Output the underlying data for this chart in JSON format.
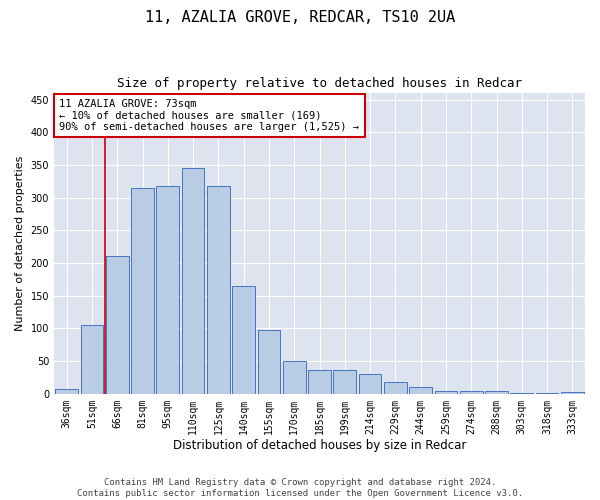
{
  "title": "11, AZALIA GROVE, REDCAR, TS10 2UA",
  "subtitle": "Size of property relative to detached houses in Redcar",
  "xlabel": "Distribution of detached houses by size in Redcar",
  "ylabel": "Number of detached properties",
  "categories": [
    "36sqm",
    "51sqm",
    "66sqm",
    "81sqm",
    "95sqm",
    "110sqm",
    "125sqm",
    "140sqm",
    "155sqm",
    "170sqm",
    "185sqm",
    "199sqm",
    "214sqm",
    "229sqm",
    "244sqm",
    "259sqm",
    "274sqm",
    "288sqm",
    "303sqm",
    "318sqm",
    "333sqm"
  ],
  "values": [
    7,
    105,
    211,
    315,
    318,
    345,
    318,
    165,
    97,
    50,
    36,
    36,
    30,
    18,
    10,
    5,
    5,
    5,
    2,
    2,
    3
  ],
  "bar_color": "#b8cce4",
  "bar_edge_color": "#4472c4",
  "background_color": "#dde4f0",
  "grid_color": "#ffffff",
  "annotation_text": "11 AZALIA GROVE: 73sqm\n← 10% of detached houses are smaller (169)\n90% of semi-detached houses are larger (1,525) →",
  "annotation_box_color": "#ffffff",
  "annotation_box_edge": "#cc0000",
  "vline_color": "#cc0000",
  "vline_x_index": 1.5,
  "ylim": [
    0,
    460
  ],
  "yticks": [
    0,
    50,
    100,
    150,
    200,
    250,
    300,
    350,
    400,
    450
  ],
  "footer": "Contains HM Land Registry data © Crown copyright and database right 2024.\nContains public sector information licensed under the Open Government Licence v3.0.",
  "title_fontsize": 11,
  "subtitle_fontsize": 9,
  "xlabel_fontsize": 8.5,
  "ylabel_fontsize": 8,
  "tick_fontsize": 7,
  "annotation_fontsize": 7.5,
  "footer_fontsize": 6.5
}
